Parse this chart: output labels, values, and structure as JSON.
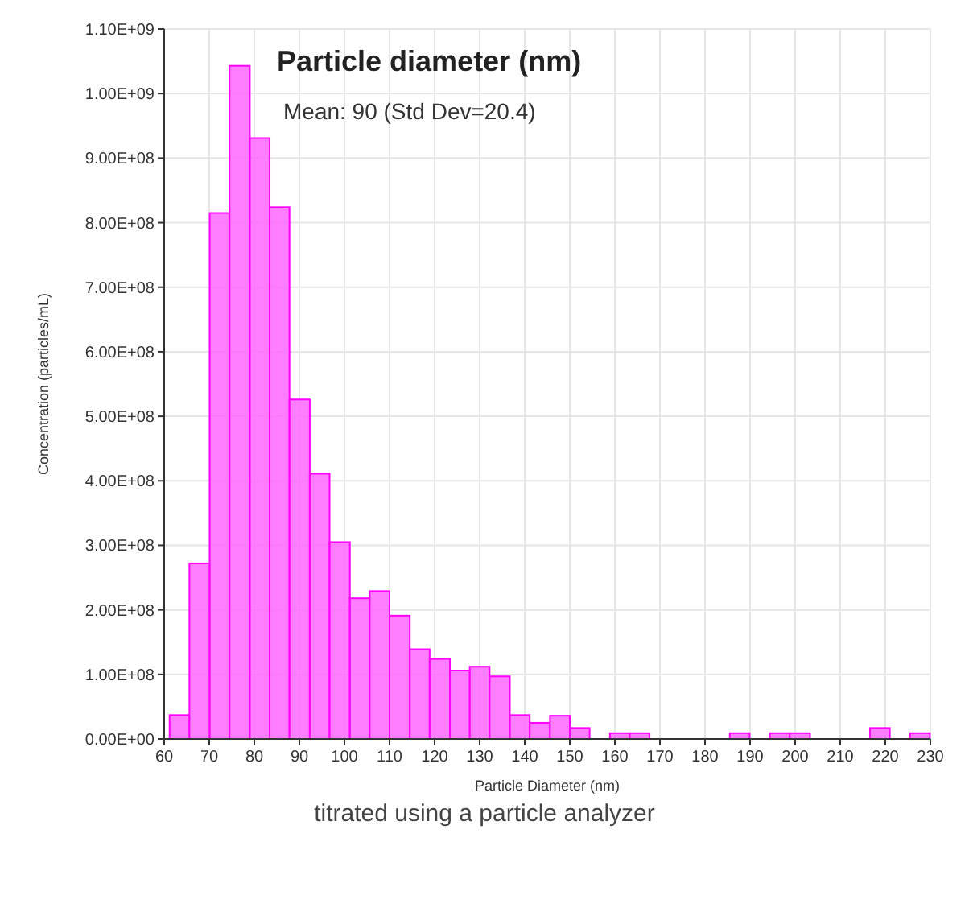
{
  "chart_data": {
    "type": "histogram",
    "title": "Particle diameter (nm)",
    "xlabel": "Particle Diameter (nm)",
    "ylabel": "Concentration (particles/mL)",
    "bins": [
      61.2,
      65.6,
      70.1,
      74.5,
      79.0,
      83.4,
      87.8,
      92.3,
      96.7,
      101.2,
      105.6,
      110.0,
      114.5,
      118.9,
      123.4,
      127.8,
      132.2,
      136.7,
      141.1,
      145.6,
      150.0,
      154.4,
      158.9,
      163.3,
      167.7,
      185.5,
      189.9,
      194.4,
      198.8,
      203.3,
      216.6,
      221.0,
      225.5,
      229.9
    ],
    "values": [
      37000000,
      272000000,
      815000000,
      1043000000,
      931000000,
      824000000,
      526000000,
      411000000,
      305000000,
      218000000,
      229000000,
      191000000,
      139000000,
      124000000,
      106000000,
      112000000,
      97000000,
      37000000,
      25000000,
      36000000,
      17000000,
      0,
      9000000,
      9000000,
      0,
      9000000,
      0,
      9000000,
      9000000,
      0,
      17000000,
      0,
      9000000
    ],
    "color": "#ff66ff",
    "xlim": [
      60,
      230
    ],
    "xticks": [
      60,
      70,
      80,
      90,
      100,
      110,
      120,
      130,
      140,
      150,
      160,
      170,
      180,
      190,
      200,
      210,
      220,
      230
    ],
    "ylim": [
      0,
      1100000000
    ],
    "yticks": [
      {
        "value": 0,
        "label": "0.00E+00"
      },
      {
        "value": 100000000,
        "label": "1.00E+08"
      },
      {
        "value": 200000000,
        "label": "2.00E+08"
      },
      {
        "value": 300000000,
        "label": "3.00E+08"
      },
      {
        "value": 400000000,
        "label": "4.00E+08"
      },
      {
        "value": 500000000,
        "label": "5.00E+08"
      },
      {
        "value": 600000000,
        "label": "6.00E+08"
      },
      {
        "value": 700000000,
        "label": "7.00E+08"
      },
      {
        "value": 800000000,
        "label": "8.00E+08"
      },
      {
        "value": 900000000,
        "label": "9.00E+08"
      },
      {
        "value": 1000000000,
        "label": "1.00E+09"
      },
      {
        "value": 1100000000,
        "label": "1.10E+09"
      }
    ],
    "grid": true,
    "annotations": [
      "Mean: 90 (Std Dev=20.4)",
      "titrated using a particle analyzer"
    ]
  }
}
